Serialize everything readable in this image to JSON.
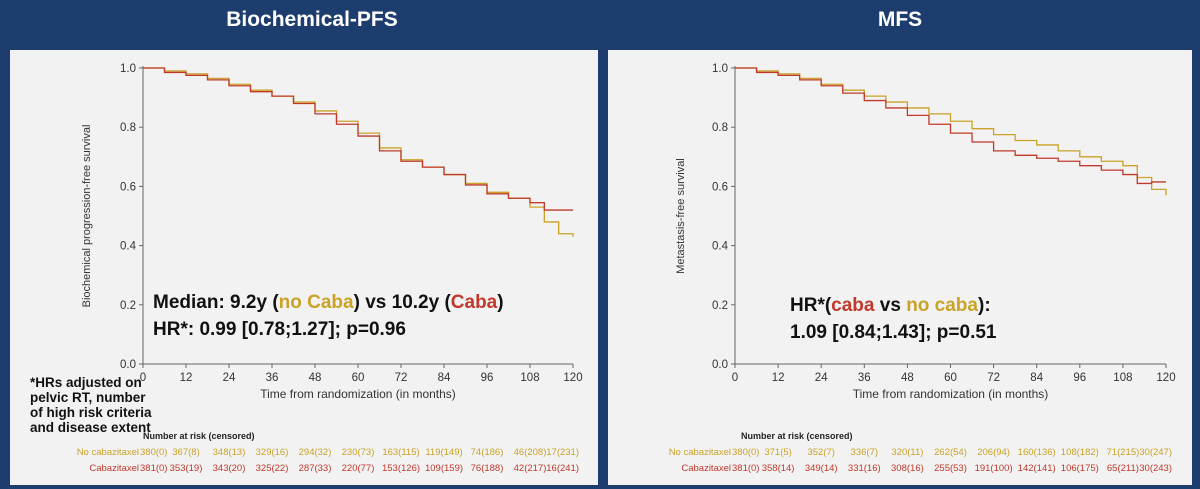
{
  "titles": {
    "left": "Biochemical-PFS",
    "right": "MFS"
  },
  "colors": {
    "background": "#1c3d6e",
    "panel": "#f2f2f2",
    "no_caba": "#c9a227",
    "caba": "#c0392b",
    "axis": "#666666"
  },
  "footnote": "*HRs adjusted on pelvic RT, number of high risk criteria and disease extent",
  "chart_data": [
    {
      "type": "line",
      "title": "Biochemical-PFS",
      "xlabel": "Time from randomization (in months)",
      "ylabel": "Biochemical progression-free survival",
      "xlim": [
        0,
        120
      ],
      "ylim": [
        0,
        1
      ],
      "xticks": [
        0,
        12,
        24,
        36,
        48,
        60,
        72,
        84,
        96,
        108,
        120
      ],
      "yticks": [
        "0.0",
        "0.2",
        "0.4",
        "0.6",
        "0.8",
        "1.0"
      ],
      "grid": false,
      "annotations": {
        "line1": [
          {
            "text": "Median: 9.2y (",
            "color": "#111111"
          },
          {
            "text": "no Caba",
            "color": "#c9a227"
          },
          {
            "text": ") vs 10.2y (",
            "color": "#111111"
          },
          {
            "text": "Caba",
            "color": "#c0392b"
          },
          {
            "text": ")",
            "color": "#111111"
          }
        ],
        "line2": [
          {
            "text": "HR*: 0.99 [0.78;1.27]; p=0.96",
            "color": "#111111"
          }
        ]
      },
      "series": [
        {
          "color": "#c9a227",
          "x": [
            0,
            6,
            12,
            18,
            24,
            30,
            36,
            42,
            48,
            54,
            60,
            66,
            72,
            78,
            84,
            90,
            96,
            102,
            108,
            112,
            116,
            120
          ],
          "y": [
            1.0,
            0.99,
            0.98,
            0.965,
            0.945,
            0.925,
            0.905,
            0.885,
            0.855,
            0.82,
            0.78,
            0.73,
            0.69,
            0.665,
            0.64,
            0.61,
            0.58,
            0.56,
            0.53,
            0.48,
            0.44,
            0.43
          ]
        },
        {
          "color": "#c0392b",
          "x": [
            0,
            6,
            12,
            18,
            24,
            30,
            36,
            42,
            48,
            54,
            60,
            66,
            72,
            78,
            84,
            90,
            96,
            102,
            108,
            112,
            120
          ],
          "y": [
            1.0,
            0.985,
            0.975,
            0.96,
            0.94,
            0.92,
            0.905,
            0.88,
            0.845,
            0.81,
            0.77,
            0.72,
            0.685,
            0.665,
            0.64,
            0.605,
            0.575,
            0.56,
            0.545,
            0.52,
            0.52
          ]
        }
      ],
      "risk_table": {
        "header": "Number at risk (censored)",
        "rows": [
          {
            "label": "No cabazitaxel",
            "color": "#c9a227",
            "values": [
              "380(0)",
              "367(8)",
              "348(13)",
              "329(16)",
              "294(32)",
              "230(73)",
              "163(115)",
              "119(149)",
              "74(186)",
              "46(208)",
              "17(231)"
            ]
          },
          {
            "label": "Cabazitaxel",
            "color": "#c0392b",
            "values": [
              "381(0)",
              "353(19)",
              "343(20)",
              "325(22)",
              "287(33)",
              "220(77)",
              "153(126)",
              "109(159)",
              "76(188)",
              "42(217)",
              "16(241)"
            ]
          }
        ]
      }
    },
    {
      "type": "line",
      "title": "MFS",
      "xlabel": "Time from randomization (in months)",
      "ylabel": "Metastasis-free survival",
      "xlim": [
        0,
        120
      ],
      "ylim": [
        0,
        1
      ],
      "xticks": [
        0,
        12,
        24,
        36,
        48,
        60,
        72,
        84,
        96,
        108,
        120
      ],
      "yticks": [
        "0.0",
        "0.2",
        "0.4",
        "0.6",
        "0.8",
        "1.0"
      ],
      "grid": false,
      "annotations": {
        "line1": [
          {
            "text": "HR*(",
            "color": "#111111"
          },
          {
            "text": "caba",
            "color": "#c0392b"
          },
          {
            "text": " vs ",
            "color": "#111111"
          },
          {
            "text": "no caba",
            "color": "#c9a227"
          },
          {
            "text": "):",
            "color": "#111111"
          }
        ],
        "line2": [
          {
            "text": "1.09 [0.84;1.43]; p=0.51",
            "color": "#111111"
          }
        ]
      },
      "series": [
        {
          "color": "#c9a227",
          "x": [
            0,
            6,
            12,
            18,
            24,
            30,
            36,
            42,
            48,
            54,
            60,
            66,
            72,
            78,
            84,
            90,
            96,
            102,
            108,
            112,
            116,
            120
          ],
          "y": [
            1.0,
            0.99,
            0.98,
            0.965,
            0.945,
            0.925,
            0.905,
            0.885,
            0.865,
            0.845,
            0.82,
            0.795,
            0.775,
            0.755,
            0.74,
            0.72,
            0.7,
            0.685,
            0.67,
            0.63,
            0.59,
            0.57
          ]
        },
        {
          "color": "#c0392b",
          "x": [
            0,
            6,
            12,
            18,
            24,
            30,
            36,
            42,
            48,
            54,
            60,
            66,
            72,
            78,
            84,
            90,
            96,
            102,
            108,
            112,
            116,
            120
          ],
          "y": [
            1.0,
            0.985,
            0.975,
            0.96,
            0.94,
            0.915,
            0.89,
            0.865,
            0.84,
            0.81,
            0.78,
            0.75,
            0.72,
            0.705,
            0.695,
            0.685,
            0.67,
            0.655,
            0.64,
            0.61,
            0.615,
            0.615
          ]
        }
      ],
      "risk_table": {
        "header": "Number at risk (censored)",
        "rows": [
          {
            "label": "No cabazitaxel",
            "color": "#c9a227",
            "values": [
              "380(0)",
              "371(5)",
              "352(7)",
              "336(7)",
              "320(11)",
              "262(54)",
              "206(94)",
              "160(136)",
              "108(182)",
              "71(215)",
              "30(247)"
            ]
          },
          {
            "label": "Cabazitaxel",
            "color": "#c0392b",
            "values": [
              "381(0)",
              "358(14)",
              "349(14)",
              "331(16)",
              "308(16)",
              "255(53)",
              "191(100)",
              "142(141)",
              "106(175)",
              "65(211)",
              "30(243)"
            ]
          }
        ]
      }
    }
  ]
}
